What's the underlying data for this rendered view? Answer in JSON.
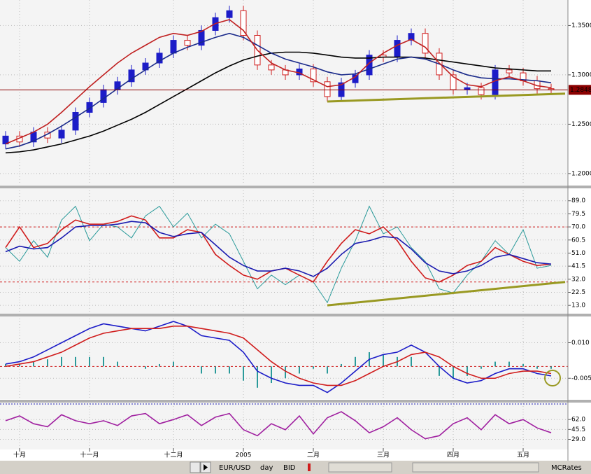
{
  "chart_data": [
    {
      "type": "candlestick",
      "categories": [
        null,
        "十月",
        null,
        null,
        null,
        null,
        "十一月",
        null,
        null,
        null,
        null,
        null,
        "十二月",
        null,
        null,
        null,
        null,
        "2005",
        null,
        null,
        null,
        null,
        "二月",
        null,
        null,
        null,
        null,
        "三月",
        null,
        null,
        null,
        null,
        "四月",
        null,
        null,
        null,
        null,
        "五月",
        null,
        null
      ],
      "open": [
        1.23,
        1.238,
        1.232,
        1.242,
        1.236,
        1.244,
        1.262,
        1.272,
        1.285,
        1.293,
        1.305,
        1.312,
        1.322,
        1.335,
        1.33,
        1.345,
        1.358,
        1.365,
        1.34,
        1.31,
        1.305,
        1.3,
        1.306,
        1.293,
        1.278,
        1.292,
        1.3,
        1.32,
        1.318,
        1.335,
        1.342,
        1.322,
        1.3,
        1.285,
        1.287,
        1.28,
        1.305,
        1.302,
        1.294,
        1.286
      ],
      "high": [
        1.243,
        1.243,
        1.247,
        1.247,
        1.249,
        1.267,
        1.277,
        1.29,
        1.298,
        1.31,
        1.317,
        1.327,
        1.34,
        1.34,
        1.35,
        1.363,
        1.37,
        1.37,
        1.345,
        1.315,
        1.31,
        1.311,
        1.311,
        1.298,
        1.297,
        1.305,
        1.325,
        1.325,
        1.34,
        1.347,
        1.347,
        1.327,
        1.305,
        1.292,
        1.292,
        1.31,
        1.31,
        1.307,
        1.299,
        1.291
      ],
      "low": [
        1.225,
        1.227,
        1.227,
        1.231,
        1.231,
        1.239,
        1.257,
        1.267,
        1.28,
        1.288,
        1.3,
        1.307,
        1.317,
        1.325,
        1.325,
        1.34,
        1.353,
        1.335,
        1.305,
        1.3,
        1.295,
        1.295,
        1.288,
        1.273,
        1.273,
        1.287,
        1.295,
        1.313,
        1.313,
        1.33,
        1.317,
        1.295,
        1.28,
        1.28,
        1.275,
        1.275,
        1.297,
        1.289,
        1.281,
        1.28
      ],
      "close": [
        1.238,
        1.232,
        1.242,
        1.236,
        1.244,
        1.262,
        1.272,
        1.285,
        1.293,
        1.305,
        1.312,
        1.322,
        1.335,
        1.33,
        1.345,
        1.358,
        1.365,
        1.34,
        1.31,
        1.305,
        1.3,
        1.306,
        1.293,
        1.278,
        1.292,
        1.3,
        1.32,
        1.318,
        1.335,
        1.342,
        1.322,
        1.3,
        1.285,
        1.287,
        1.28,
        1.305,
        1.302,
        1.294,
        1.286,
        1.285
      ],
      "up_color": "#1c1cc8",
      "down_color": "#d01c1c",
      "series": [
        {
          "color": "#000000",
          "values": [
            1.221,
            1.222,
            1.224,
            1.227,
            1.23,
            1.234,
            1.238,
            1.243,
            1.249,
            1.255,
            1.262,
            1.27,
            1.278,
            1.286,
            1.294,
            1.302,
            1.309,
            1.315,
            1.319,
            1.322,
            1.323,
            1.323,
            1.322,
            1.32,
            1.318,
            1.317,
            1.317,
            1.318,
            1.318,
            1.318,
            1.317,
            1.315,
            1.313,
            1.311,
            1.309,
            1.307,
            1.306,
            1.305,
            1.304,
            1.304
          ]
        },
        {
          "color": "#1a2a8a",
          "values": [
            1.225,
            1.228,
            1.233,
            1.24,
            1.248,
            1.257,
            1.266,
            1.276,
            1.286,
            1.296,
            1.305,
            1.314,
            1.322,
            1.328,
            1.333,
            1.338,
            1.342,
            1.338,
            1.33,
            1.322,
            1.316,
            1.312,
            1.308,
            1.303,
            1.3,
            1.301,
            1.306,
            1.311,
            1.316,
            1.318,
            1.316,
            1.311,
            1.305,
            1.3,
            1.297,
            1.296,
            1.296,
            1.295,
            1.294,
            1.292
          ]
        },
        {
          "color": "#c02020",
          "values": [
            1.23,
            1.236,
            1.242,
            1.25,
            1.262,
            1.275,
            1.288,
            1.3,
            1.312,
            1.322,
            1.33,
            1.338,
            1.342,
            1.34,
            1.344,
            1.352,
            1.356,
            1.345,
            1.325,
            1.312,
            1.305,
            1.302,
            1.295,
            1.288,
            1.29,
            1.298,
            1.312,
            1.322,
            1.33,
            1.336,
            1.328,
            1.312,
            1.298,
            1.29,
            1.288,
            1.294,
            1.298,
            1.294,
            1.289,
            1.287
          ]
        }
      ],
      "trendline": {
        "x": [
          23,
          40
        ],
        "y": [
          1.273,
          1.281
        ],
        "color": "#999922"
      },
      "last_price": {
        "value": 1.2848,
        "label": "1.2848"
      },
      "ylim": [
        1.19,
        1.373
      ],
      "yticks": [
        {
          "value": 1.35,
          "label": "1.3500"
        },
        {
          "value": 1.3,
          "label": "1.3000"
        },
        {
          "value": 1.25,
          "label": "1.2500"
        },
        {
          "value": 1.2,
          "label": "1.2000"
        }
      ],
      "grid": true
    },
    {
      "type": "line",
      "series": [
        {
          "color": "#2a9a9a",
          "values": [
            55,
            45,
            60,
            48,
            75,
            85,
            60,
            72,
            70,
            62,
            78,
            85,
            70,
            80,
            62,
            72,
            65,
            45,
            25,
            35,
            28,
            35,
            30,
            15,
            40,
            60,
            85,
            65,
            70,
            55,
            45,
            25,
            22,
            35,
            45,
            60,
            50,
            68,
            40,
            42
          ]
        },
        {
          "color": "#d01c1c",
          "values": [
            55,
            70,
            55,
            58,
            68,
            75,
            72,
            72,
            74,
            78,
            75,
            62,
            62,
            68,
            66,
            50,
            42,
            35,
            32,
            38,
            40,
            35,
            30,
            45,
            58,
            68,
            65,
            70,
            60,
            45,
            33,
            30,
            35,
            42,
            45,
            55,
            50,
            45,
            42,
            43
          ]
        },
        {
          "color": "#1c1cb0",
          "values": [
            52,
            56,
            54,
            55,
            62,
            70,
            71,
            71,
            72,
            74,
            73,
            66,
            63,
            65,
            66,
            57,
            48,
            42,
            38,
            38,
            40,
            38,
            34,
            40,
            50,
            58,
            60,
            63,
            62,
            54,
            44,
            38,
            36,
            38,
            42,
            48,
            50,
            47,
            44,
            43
          ]
        }
      ],
      "levels": [
        70,
        30
      ],
      "level_color": "#d01c1c",
      "trendline": {
        "x": [
          23,
          40
        ],
        "y": [
          13,
          30
        ],
        "color": "#999922"
      },
      "ylim": [
        8,
        96.5
      ],
      "yticks": [
        {
          "value": 89,
          "label": "89.0"
        },
        {
          "value": 79.5,
          "label": "79.5"
        },
        {
          "value": 70,
          "label": "70.0"
        },
        {
          "value": 60.5,
          "label": "60.5"
        },
        {
          "value": 51,
          "label": "51.0"
        },
        {
          "value": 41.5,
          "label": "41.5"
        },
        {
          "value": 32,
          "label": "32.0"
        },
        {
          "value": 22.5,
          "label": "22.5"
        },
        {
          "value": 13,
          "label": "13.0"
        }
      ],
      "grid": true
    },
    {
      "type": "macd",
      "series": [
        {
          "kind": "histogram",
          "color": "#2a9a9a",
          "values": [
            0.001,
            0.001,
            0.002,
            0.003,
            0.004,
            0.004,
            0.004,
            0.004,
            0.002,
            0.0,
            -0.001,
            0.001,
            0.002,
            0.0,
            -0.003,
            -0.003,
            -0.003,
            -0.006,
            -0.009,
            -0.007,
            -0.005,
            -0.003,
            -0.001,
            -0.003,
            0.001,
            0.004,
            0.006,
            0.005,
            0.004,
            0.004,
            0.0,
            -0.004,
            -0.005,
            -0.004,
            -0.001,
            0.002,
            0.002,
            0.001,
            -0.001,
            -0.001
          ]
        },
        {
          "kind": "line",
          "color": "#1c1cc8",
          "values": [
            0.001,
            0.002,
            0.004,
            0.007,
            0.01,
            0.013,
            0.016,
            0.018,
            0.017,
            0.016,
            0.015,
            0.017,
            0.019,
            0.017,
            0.013,
            0.012,
            0.011,
            0.006,
            -0.002,
            -0.005,
            -0.007,
            -0.008,
            -0.008,
            -0.011,
            -0.007,
            -0.002,
            0.003,
            0.005,
            0.006,
            0.009,
            0.006,
            0.0,
            -0.005,
            -0.007,
            -0.006,
            -0.003,
            -0.001,
            -0.001,
            -0.003,
            -0.004
          ]
        },
        {
          "kind": "line",
          "color": "#d01c1c",
          "values": [
            0.0,
            0.001,
            0.002,
            0.004,
            0.006,
            0.009,
            0.012,
            0.014,
            0.015,
            0.016,
            0.016,
            0.016,
            0.017,
            0.017,
            0.016,
            0.015,
            0.014,
            0.012,
            0.007,
            0.002,
            -0.002,
            -0.005,
            -0.007,
            -0.008,
            -0.008,
            -0.006,
            -0.003,
            0.0,
            0.002,
            0.005,
            0.006,
            0.004,
            0.0,
            -0.003,
            -0.005,
            -0.005,
            -0.003,
            -0.002,
            -0.002,
            -0.003
          ]
        }
      ],
      "levels": [
        0
      ],
      "level_color": "#d01c1c",
      "ylim": [
        -0.0132,
        0.0202
      ],
      "yticks": [
        {
          "value": 0.01,
          "label": "0.010"
        },
        {
          "value": -0.005,
          "label": "-0.005"
        }
      ],
      "grid": true
    },
    {
      "type": "line",
      "series": [
        {
          "color": "#a020a0",
          "values": [
            60,
            68,
            55,
            50,
            70,
            60,
            55,
            60,
            52,
            68,
            72,
            55,
            62,
            70,
            52,
            66,
            72,
            45,
            35,
            55,
            45,
            68,
            38,
            65,
            75,
            60,
            40,
            50,
            65,
            45,
            30,
            35,
            55,
            65,
            45,
            70,
            55,
            62,
            48,
            40
          ]
        }
      ],
      "ylim": [
        14.4,
        84.4
      ],
      "yticks": [
        {
          "value": 62,
          "label": "62.0"
        },
        {
          "value": 45.5,
          "label": "45.5"
        },
        {
          "value": 29,
          "label": "29.0"
        }
      ],
      "grid": true
    }
  ],
  "toolbar": {
    "symbol": "EUR/USD",
    "period": "day",
    "side": "BID",
    "source": "MCRates"
  }
}
